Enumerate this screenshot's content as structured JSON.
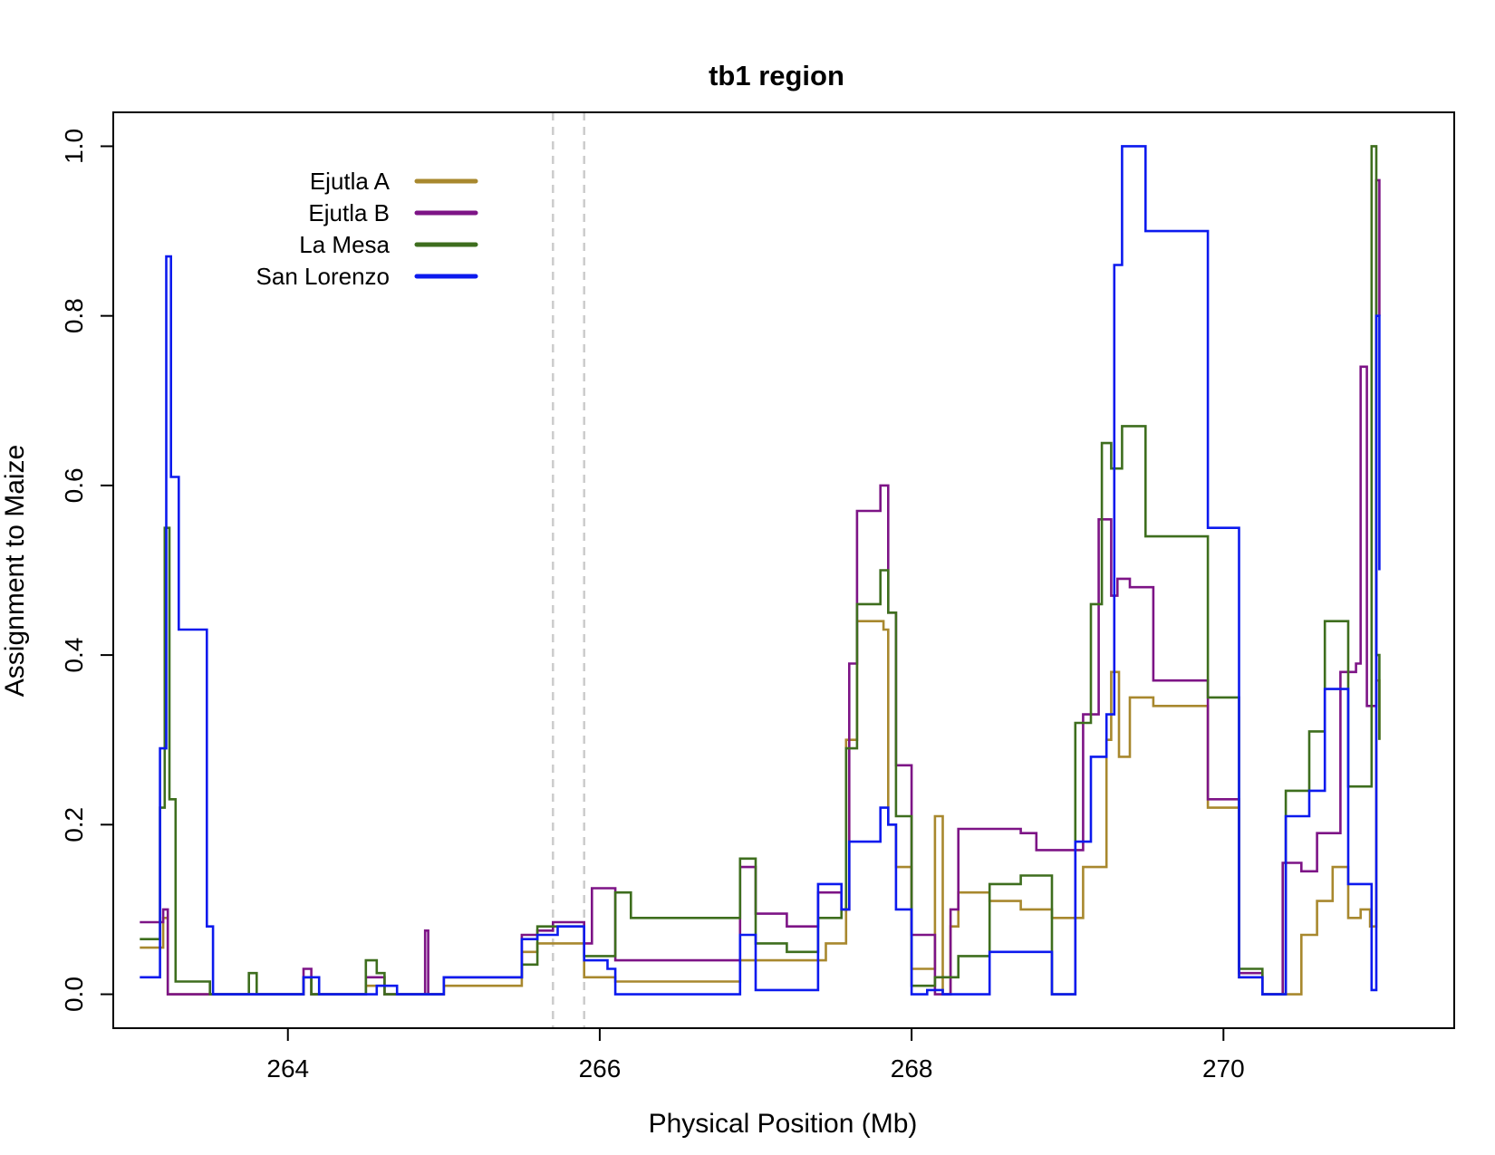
{
  "chart_data": {
    "type": "line",
    "title": "tb1 region",
    "xlabel": "Physical Position (Mb)",
    "ylabel": "Assignment to Maize",
    "xlim": [
      262.88,
      271.48
    ],
    "ylim": [
      -0.04,
      1.04
    ],
    "xticks": [
      264,
      266,
      268,
      270
    ],
    "xtick_labels": [
      "264",
      "266",
      "268",
      "270"
    ],
    "yticks": [
      0.0,
      0.2,
      0.4,
      0.6,
      0.8,
      1.0
    ],
    "ytick_labels": [
      "0.0",
      "0.2",
      "0.4",
      "0.6",
      "0.8",
      "1.0"
    ],
    "grid": false,
    "legend_position": "top-left",
    "vlines": {
      "x": [
        265.7,
        265.9
      ],
      "color": "#cccccc",
      "style": "dashed"
    },
    "series": [
      {
        "name": "Ejutla A",
        "color": "#a8882e",
        "x": [
          263.05,
          263.2,
          263.23,
          263.28,
          263.5,
          264.1,
          264.15,
          264.2,
          264.5,
          264.57,
          264.62,
          264.7,
          265.0,
          265.5,
          265.6,
          265.73,
          265.9,
          266.1,
          266.2,
          266.9,
          267.0,
          267.1,
          267.35,
          267.45,
          267.58,
          267.65,
          267.82,
          267.85,
          267.9,
          268.0,
          268.15,
          268.2,
          268.25,
          268.3,
          268.5,
          268.7,
          268.9,
          269.1,
          269.25,
          269.28,
          269.33,
          269.4,
          269.55,
          269.9,
          270.1,
          270.25,
          270.5,
          270.6,
          270.7,
          270.8,
          270.88,
          270.94,
          270.98,
          271.0
        ],
        "y": [
          0.055,
          0.09,
          0.0,
          0.0,
          0.0,
          0.02,
          0.0,
          0.0,
          0.01,
          0.01,
          0.0,
          0.0,
          0.01,
          0.05,
          0.06,
          0.06,
          0.02,
          0.015,
          0.015,
          0.04,
          0.04,
          0.04,
          0.04,
          0.06,
          0.3,
          0.44,
          0.43,
          0.2,
          0.15,
          0.03,
          0.21,
          0.0,
          0.08,
          0.12,
          0.11,
          0.1,
          0.09,
          0.15,
          0.3,
          0.38,
          0.28,
          0.35,
          0.34,
          0.22,
          0.02,
          0.0,
          0.07,
          0.11,
          0.15,
          0.09,
          0.1,
          0.08,
          0.37,
          0.3
        ]
      },
      {
        "name": "Ejutla B",
        "color": "#7d1486",
        "x": [
          263.05,
          263.2,
          263.23,
          263.28,
          263.5,
          264.1,
          264.15,
          264.2,
          264.5,
          264.57,
          264.62,
          264.7,
          264.88,
          264.9,
          265.0,
          265.5,
          265.6,
          265.7,
          265.9,
          265.95,
          266.1,
          266.2,
          266.9,
          267.0,
          267.2,
          267.4,
          267.55,
          267.6,
          267.65,
          267.8,
          267.85,
          267.9,
          268.0,
          268.15,
          268.2,
          268.25,
          268.3,
          268.7,
          268.8,
          269.1,
          269.2,
          269.28,
          269.32,
          269.4,
          269.55,
          269.9,
          270.1,
          270.25,
          270.38,
          270.5,
          270.6,
          270.75,
          270.85,
          270.88,
          270.92,
          270.98,
          271.0
        ],
        "y": [
          0.085,
          0.1,
          0.0,
          0.0,
          0.0,
          0.03,
          0.0,
          0.0,
          0.02,
          0.02,
          0.0,
          0.0,
          0.075,
          0.0,
          0.02,
          0.07,
          0.075,
          0.085,
          0.06,
          0.125,
          0.04,
          0.04,
          0.15,
          0.095,
          0.08,
          0.12,
          0.1,
          0.39,
          0.57,
          0.6,
          0.45,
          0.27,
          0.07,
          0.0,
          0.0,
          0.1,
          0.195,
          0.19,
          0.17,
          0.33,
          0.56,
          0.47,
          0.49,
          0.48,
          0.37,
          0.23,
          0.025,
          0.0,
          0.155,
          0.145,
          0.19,
          0.38,
          0.39,
          0.74,
          0.34,
          0.96,
          0.8
        ]
      },
      {
        "name": "La Mesa",
        "color": "#3e6e1e",
        "x": [
          263.05,
          263.18,
          263.21,
          263.24,
          263.28,
          263.5,
          263.75,
          263.8,
          264.1,
          264.15,
          264.2,
          264.5,
          264.57,
          264.62,
          264.7,
          265.0,
          265.5,
          265.6,
          265.73,
          265.9,
          266.1,
          266.2,
          266.9,
          267.0,
          267.2,
          267.4,
          267.55,
          267.58,
          267.65,
          267.8,
          267.85,
          267.9,
          268.0,
          268.15,
          268.3,
          268.5,
          268.7,
          268.9,
          269.05,
          269.15,
          269.22,
          269.28,
          269.35,
          269.5,
          269.9,
          270.1,
          270.25,
          270.4,
          270.55,
          270.65,
          270.8,
          270.88,
          270.95,
          270.98,
          271.0
        ],
        "y": [
          0.065,
          0.22,
          0.55,
          0.23,
          0.015,
          0.0,
          0.025,
          0.0,
          0.02,
          0.0,
          0.0,
          0.04,
          0.025,
          0.0,
          0.0,
          0.02,
          0.035,
          0.08,
          0.08,
          0.045,
          0.12,
          0.09,
          0.16,
          0.06,
          0.05,
          0.09,
          0.1,
          0.29,
          0.46,
          0.5,
          0.45,
          0.21,
          0.01,
          0.02,
          0.045,
          0.13,
          0.14,
          0.0,
          0.32,
          0.46,
          0.65,
          0.62,
          0.67,
          0.54,
          0.35,
          0.03,
          0.0,
          0.24,
          0.31,
          0.44,
          0.245,
          0.245,
          1.0,
          0.4,
          0.3
        ]
      },
      {
        "name": "San Lorenzo",
        "color": "#0c1aee",
        "x": [
          263.05,
          263.18,
          263.22,
          263.25,
          263.3,
          263.48,
          263.52,
          264.1,
          264.2,
          264.5,
          264.57,
          264.62,
          264.7,
          265.0,
          265.5,
          265.6,
          265.73,
          265.9,
          266.0,
          266.05,
          266.1,
          266.2,
          266.9,
          267.0,
          267.2,
          267.4,
          267.55,
          267.6,
          267.65,
          267.8,
          267.85,
          267.9,
          268.0,
          268.1,
          268.2,
          268.3,
          268.5,
          268.7,
          268.9,
          269.05,
          269.15,
          269.25,
          269.3,
          269.35,
          269.5,
          269.9,
          270.1,
          270.25,
          270.4,
          270.55,
          270.65,
          270.8,
          270.88,
          270.95,
          270.98,
          271.0
        ],
        "y": [
          0.02,
          0.29,
          0.87,
          0.61,
          0.43,
          0.08,
          0.0,
          0.02,
          0.0,
          0.0,
          0.01,
          0.01,
          0.0,
          0.02,
          0.065,
          0.07,
          0.08,
          0.04,
          0.04,
          0.03,
          0.0,
          0.0,
          0.07,
          0.005,
          0.005,
          0.13,
          0.1,
          0.18,
          0.18,
          0.22,
          0.2,
          0.1,
          0.0,
          0.005,
          0.0,
          0.0,
          0.05,
          0.05,
          0.0,
          0.18,
          0.28,
          0.33,
          0.86,
          1.0,
          0.9,
          0.55,
          0.02,
          0.0,
          0.21,
          0.24,
          0.36,
          0.13,
          0.13,
          0.005,
          0.8,
          0.5
        ]
      }
    ]
  }
}
